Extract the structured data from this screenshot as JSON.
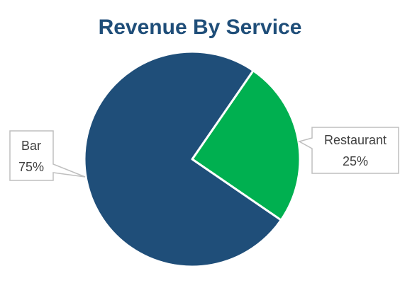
{
  "chart_data": {
    "type": "pie",
    "title": "Revenue By Service",
    "categories": [
      "Restaurant",
      "Bar"
    ],
    "values": [
      25,
      75
    ],
    "value_labels": [
      "25%",
      "75%"
    ],
    "colors": [
      "#00b050",
      "#1f4e79"
    ]
  }
}
